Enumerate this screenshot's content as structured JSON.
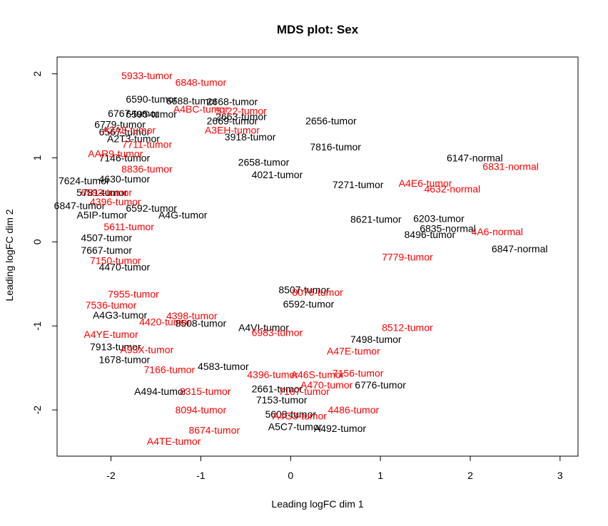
{
  "chart_data": {
    "type": "scatter",
    "title": "MDS plot: Sex",
    "xlabel": "Leading logFC dim 1",
    "ylabel": "Leading logFC dim 2",
    "xlim": [
      -2.6,
      3.2
    ],
    "ylim": [
      -2.55,
      2.2
    ],
    "xticks": [
      -2,
      -1,
      0,
      1,
      2,
      3
    ],
    "yticks": [
      -2,
      -1,
      0,
      1,
      2
    ],
    "grid": false,
    "legend": "none",
    "colors": {
      "black_group": "#000000",
      "red_group": "#ff0000"
    },
    "series": [
      {
        "color": "#000000",
        "points": [
          {
            "label": "6590-tumor",
            "x": -1.55,
            "y": 1.7
          },
          {
            "label": "6688-tumor",
            "x": -1.1,
            "y": 1.68
          },
          {
            "label": "2668-tumor",
            "x": -0.65,
            "y": 1.67
          },
          {
            "label": "6767-tumor",
            "x": -1.75,
            "y": 1.53
          },
          {
            "label": "6595-tumor",
            "x": -1.55,
            "y": 1.52
          },
          {
            "label": "2663-tumor",
            "x": -0.55,
            "y": 1.49
          },
          {
            "label": "2669-tumor",
            "x": -0.65,
            "y": 1.44
          },
          {
            "label": "6779-tumor",
            "x": -1.9,
            "y": 1.4
          },
          {
            "label": "2656-tumor",
            "x": 0.45,
            "y": 1.44
          },
          {
            "label": "3918-tumor",
            "x": -0.45,
            "y": 1.25
          },
          {
            "label": "A2T3-tumor",
            "x": -1.75,
            "y": 1.23
          },
          {
            "label": "6567-tumor",
            "x": -1.85,
            "y": 1.31
          },
          {
            "label": "7816-tumor",
            "x": 0.5,
            "y": 1.13
          },
          {
            "label": "7146-tumor",
            "x": -1.85,
            "y": 1.0
          },
          {
            "label": "7624-tumor",
            "x": -2.3,
            "y": 0.73
          },
          {
            "label": "4630-tumor",
            "x": -1.85,
            "y": 0.75
          },
          {
            "label": "5781-tumor",
            "x": -2.1,
            "y": 0.59
          },
          {
            "label": "6847-tumor",
            "x": -2.35,
            "y": 0.43
          },
          {
            "label": "6592-tumor",
            "x": -1.55,
            "y": 0.4
          },
          {
            "label": "A5IP-tumor",
            "x": -2.1,
            "y": 0.32
          },
          {
            "label": "4507-tumor",
            "x": -2.05,
            "y": 0.05
          },
          {
            "label": "7667-tumor",
            "x": -2.05,
            "y": -0.1
          },
          {
            "label": "4470-tumor",
            "x": -1.85,
            "y": -0.3
          },
          {
            "label": "A4G3-tumor",
            "x": -1.9,
            "y": -0.87
          },
          {
            "label": "7913-tumor",
            "x": -1.95,
            "y": -1.25
          },
          {
            "label": "1678-tumor",
            "x": -1.85,
            "y": -1.4
          },
          {
            "label": "A494-tumor",
            "x": -1.45,
            "y": -1.78
          },
          {
            "label": "8621-tumor",
            "x": 0.95,
            "y": 0.27
          },
          {
            "label": "6203-tumor",
            "x": 1.65,
            "y": 0.28
          },
          {
            "label": "8496-tumor",
            "x": 1.55,
            "y": 0.09
          },
          {
            "label": "6147-normal",
            "x": 2.05,
            "y": 1.0
          },
          {
            "label": "6835-normal",
            "x": 1.75,
            "y": 0.16
          },
          {
            "label": "6847-normal",
            "x": 2.55,
            "y": -0.08
          },
          {
            "label": "6776-tumor",
            "x": 1.0,
            "y": -1.7
          },
          {
            "label": "7153-tumor",
            "x": -0.1,
            "y": -1.88
          },
          {
            "label": "5608-tumor",
            "x": 0.0,
            "y": -2.05
          },
          {
            "label": "A5C7-tumor",
            "x": 0.05,
            "y": -2.2
          },
          {
            "label": "A492-tumor",
            "x": 0.55,
            "y": -2.22
          },
          {
            "label": "8508-tumor",
            "x": -1.0,
            "y": -0.97
          },
          {
            "label": "7498-tumor",
            "x": 0.95,
            "y": -1.16
          },
          {
            "label": "6592-tumor",
            "x": 0.2,
            "y": -0.74
          },
          {
            "label": "7271-tumor",
            "x": 0.75,
            "y": 0.68
          },
          {
            "label": "2658-tumor",
            "x": -0.3,
            "y": 0.95
          },
          {
            "label": "4021-tumor",
            "x": -0.15,
            "y": 0.8
          },
          {
            "label": "A4G-tumor",
            "x": -1.2,
            "y": 0.32
          },
          {
            "label": "8507-tumor",
            "x": 0.15,
            "y": -0.57
          },
          {
            "label": "A4VI-tumor",
            "x": -0.3,
            "y": -1.02
          },
          {
            "label": "2661-tumor",
            "x": -0.15,
            "y": -1.75
          },
          {
            "label": "4583-tumor",
            "x": -0.75,
            "y": -1.48
          }
        ]
      },
      {
        "color": "#ff0000",
        "points": [
          {
            "label": "5933-tumor",
            "x": -1.6,
            "y": 1.98
          },
          {
            "label": "6848-tumor",
            "x": -1.0,
            "y": 1.9
          },
          {
            "label": "A4BC-tumor",
            "x": -1.0,
            "y": 1.58
          },
          {
            "label": "5122-tumor",
            "x": -0.55,
            "y": 1.56
          },
          {
            "label": "A2A8-tumor",
            "x": -1.8,
            "y": 1.33
          },
          {
            "label": "A3EH-tumor",
            "x": -0.65,
            "y": 1.33
          },
          {
            "label": "7711-tumor",
            "x": -1.6,
            "y": 1.16
          },
          {
            "label": "AAR9-tumor",
            "x": -1.95,
            "y": 1.05
          },
          {
            "label": "8836-tumor",
            "x": -1.6,
            "y": 0.87
          },
          {
            "label": "6593-tumor",
            "x": -2.05,
            "y": 0.59
          },
          {
            "label": "4396-tumor",
            "x": -1.95,
            "y": 0.48
          },
          {
            "label": "5611-tumor",
            "x": -1.8,
            "y": 0.18
          },
          {
            "label": "7150-tumor",
            "x": -1.95,
            "y": -0.22
          },
          {
            "label": "7955-tumor",
            "x": -1.75,
            "y": -0.62
          },
          {
            "label": "7536-tumor",
            "x": -2.0,
            "y": -0.75
          },
          {
            "label": "4420-tumor",
            "x": -1.4,
            "y": -0.95
          },
          {
            "label": "4398-tumor",
            "x": -1.1,
            "y": -0.88
          },
          {
            "label": "A4YE-tumor",
            "x": -2.0,
            "y": -1.1
          },
          {
            "label": "A93X-tumor",
            "x": -1.6,
            "y": -1.28
          },
          {
            "label": "7166-tumor",
            "x": -1.35,
            "y": -1.52
          },
          {
            "label": "8315-tumor",
            "x": -0.95,
            "y": -1.78
          },
          {
            "label": "8094-tumor",
            "x": -1.0,
            "y": -2.0
          },
          {
            "label": "8674-tumor",
            "x": -0.85,
            "y": -2.24
          },
          {
            "label": "A4TE-tumor",
            "x": -1.3,
            "y": -2.37
          },
          {
            "label": "4396-tumor",
            "x": -0.2,
            "y": -1.58
          },
          {
            "label": "A46S-tumor",
            "x": 0.3,
            "y": -1.58
          },
          {
            "label": "A470-tumor",
            "x": 0.4,
            "y": -1.7
          },
          {
            "label": "7167-tumor",
            "x": 0.15,
            "y": -1.78
          },
          {
            "label": "4486-tumor",
            "x": 0.7,
            "y": -2.0
          },
          {
            "label": "A4G3-tumor",
            "x": 0.1,
            "y": -2.07
          },
          {
            "label": "7156-tumor",
            "x": 0.75,
            "y": -1.56
          },
          {
            "label": "8512-tumor",
            "x": 1.3,
            "y": -1.02
          },
          {
            "label": "A4E6-tumor",
            "x": 1.5,
            "y": 0.7
          },
          {
            "label": "4632-normal",
            "x": 1.8,
            "y": 0.63
          },
          {
            "label": "6831-normal",
            "x": 2.45,
            "y": 0.9
          },
          {
            "label": "4A6-normal",
            "x": 2.3,
            "y": 0.12
          },
          {
            "label": "7779-tumor",
            "x": 1.3,
            "y": -0.18
          },
          {
            "label": "6983-tumor",
            "x": -0.15,
            "y": -1.08
          },
          {
            "label": "8076-tumor",
            "x": 0.3,
            "y": -0.6
          },
          {
            "label": "A47E-tumor",
            "x": 0.7,
            "y": -1.3
          }
        ]
      }
    ]
  }
}
